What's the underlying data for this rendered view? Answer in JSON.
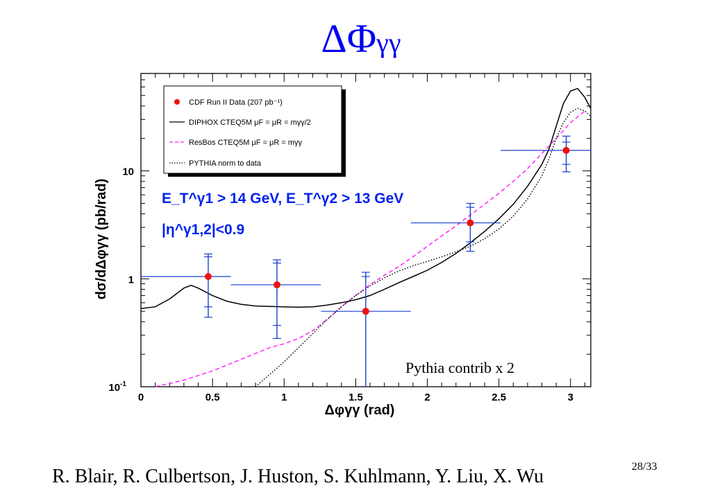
{
  "slide": {
    "title_main": "ΔΦ",
    "title_sub": "γγ",
    "authors": "R. Blair, R. Culbertson, J. Huston, S. Kuhlmann, Y. Liu, X. Wu",
    "page": "28/33"
  },
  "chart_data": {
    "type": "scatter",
    "ylabel": "dσ/dΔφγγ (pb/rad)",
    "xlabel": "Δφγγ (rad)",
    "xlim": [
      0,
      3.14159
    ],
    "ylim": [
      0.1,
      80
    ],
    "y_scale": "log",
    "grid": false,
    "legend_position": "top-left",
    "x_tick_labels": [
      "0",
      "0.5",
      "1",
      "1.5",
      "2",
      "2.5",
      "3"
    ],
    "y_tick_labels": [
      {
        "base": "10",
        "exp": "-1",
        "value": 0.1
      },
      {
        "base": "1",
        "exp": "",
        "value": 1
      },
      {
        "base": "10",
        "exp": "",
        "value": 10
      }
    ],
    "cuts": {
      "line1": "E_T^γ1 > 14 GeV, E_T^γ2 > 13 GeV",
      "line2": "|η^γ1,2|<0.9"
    },
    "annotation": "Pythia contrib x 2",
    "legend": [
      {
        "label": "CDF Run II Data (207 pb⁻¹)",
        "style": "marker",
        "color": "#ee1111"
      },
      {
        "label": "DIPHOX CTEQ5M μF = μR = mγγ/2",
        "style": "solid",
        "color": "#000000"
      },
      {
        "label": "ResBos CTEQ5M μF = μR = mγγ",
        "style": "dashed",
        "color": "#ff22ff"
      },
      {
        "label": "PYTHIA norm to data",
        "style": "dotted",
        "color": "#000000"
      }
    ],
    "data_points": [
      {
        "x": 0.47,
        "xlo": 0.0,
        "xhi": 0.628,
        "y": 1.05,
        "stat_lo": 0.55,
        "stat_hi": 1.6,
        "sys_lo": 0.44,
        "sys_hi": 1.7
      },
      {
        "x": 0.95,
        "xlo": 0.628,
        "xhi": 1.257,
        "y": 0.88,
        "stat_lo": 0.37,
        "stat_hi": 1.4,
        "sys_lo": 0.28,
        "sys_hi": 1.5
      },
      {
        "x": 1.57,
        "xlo": 1.257,
        "xhi": 1.885,
        "y": 0.5,
        "stat_lo": 0.06,
        "stat_hi": 1.05,
        "sys_lo": 0.06,
        "sys_hi": 1.15
      },
      {
        "x": 2.3,
        "xlo": 1.885,
        "xhi": 2.513,
        "y": 3.3,
        "stat_lo": 2.2,
        "stat_hi": 4.6,
        "sys_lo": 1.8,
        "sys_hi": 5.0
      },
      {
        "x": 2.97,
        "xlo": 2.513,
        "xhi": 3.14159,
        "y": 15.5,
        "stat_lo": 11.5,
        "stat_hi": 18.5,
        "sys_lo": 9.8,
        "sys_hi": 21.0
      }
    ],
    "series": [
      {
        "style": "solid",
        "color": "#000000",
        "points": [
          [
            0.0,
            0.53
          ],
          [
            0.1,
            0.55
          ],
          [
            0.2,
            0.65
          ],
          [
            0.3,
            0.82
          ],
          [
            0.35,
            0.87
          ],
          [
            0.4,
            0.82
          ],
          [
            0.5,
            0.7
          ],
          [
            0.6,
            0.62
          ],
          [
            0.7,
            0.58
          ],
          [
            0.8,
            0.56
          ],
          [
            0.9,
            0.555
          ],
          [
            1.0,
            0.55
          ],
          [
            1.1,
            0.545
          ],
          [
            1.2,
            0.55
          ],
          [
            1.3,
            0.57
          ],
          [
            1.4,
            0.6
          ],
          [
            1.5,
            0.64
          ],
          [
            1.6,
            0.7
          ],
          [
            1.7,
            0.8
          ],
          [
            1.8,
            0.92
          ],
          [
            1.9,
            1.05
          ],
          [
            2.0,
            1.2
          ],
          [
            2.1,
            1.42
          ],
          [
            2.2,
            1.72
          ],
          [
            2.3,
            2.15
          ],
          [
            2.4,
            2.75
          ],
          [
            2.5,
            3.6
          ],
          [
            2.6,
            4.9
          ],
          [
            2.7,
            7.2
          ],
          [
            2.8,
            11.5
          ],
          [
            2.85,
            16
          ],
          [
            2.9,
            26
          ],
          [
            2.95,
            42
          ],
          [
            3.0,
            55
          ],
          [
            3.05,
            58
          ],
          [
            3.1,
            48
          ],
          [
            3.14,
            38
          ]
        ]
      },
      {
        "style": "dashed",
        "color": "#ff22ff",
        "points": [
          [
            0.1,
            0.1
          ],
          [
            0.3,
            0.115
          ],
          [
            0.5,
            0.14
          ],
          [
            0.7,
            0.18
          ],
          [
            0.9,
            0.23
          ],
          [
            1.0,
            0.25
          ],
          [
            1.1,
            0.28
          ],
          [
            1.2,
            0.33
          ],
          [
            1.3,
            0.42
          ],
          [
            1.4,
            0.55
          ],
          [
            1.5,
            0.7
          ],
          [
            1.6,
            0.88
          ],
          [
            1.7,
            1.08
          ],
          [
            1.8,
            1.3
          ],
          [
            1.9,
            1.6
          ],
          [
            2.0,
            2.0
          ],
          [
            2.1,
            2.5
          ],
          [
            2.2,
            3.1
          ],
          [
            2.3,
            3.9
          ],
          [
            2.4,
            4.9
          ],
          [
            2.5,
            6.2
          ],
          [
            2.6,
            8.0
          ],
          [
            2.7,
            10.5
          ],
          [
            2.8,
            14.5
          ],
          [
            2.9,
            20
          ],
          [
            3.0,
            28
          ],
          [
            3.1,
            36
          ]
        ]
      },
      {
        "style": "dotted",
        "color": "#000000",
        "points": [
          [
            0.8,
            0.1
          ],
          [
            0.9,
            0.13
          ],
          [
            1.0,
            0.17
          ],
          [
            1.1,
            0.23
          ],
          [
            1.2,
            0.31
          ],
          [
            1.3,
            0.42
          ],
          [
            1.4,
            0.55
          ],
          [
            1.5,
            0.7
          ],
          [
            1.6,
            0.86
          ],
          [
            1.7,
            1.02
          ],
          [
            1.8,
            1.18
          ],
          [
            1.9,
            1.32
          ],
          [
            2.0,
            1.45
          ],
          [
            2.1,
            1.6
          ],
          [
            2.2,
            1.78
          ],
          [
            2.3,
            2.0
          ],
          [
            2.4,
            2.35
          ],
          [
            2.5,
            2.9
          ],
          [
            2.6,
            3.8
          ],
          [
            2.7,
            5.5
          ],
          [
            2.8,
            9.0
          ],
          [
            2.85,
            13
          ],
          [
            2.9,
            20
          ],
          [
            2.95,
            28
          ],
          [
            3.0,
            35
          ],
          [
            3.05,
            38
          ],
          [
            3.1,
            36
          ],
          [
            3.14,
            32
          ]
        ]
      }
    ]
  }
}
